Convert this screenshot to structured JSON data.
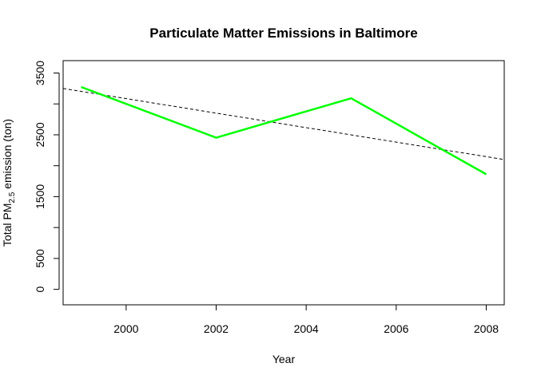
{
  "chart_data": {
    "type": "line",
    "title": "Particulate Matter Emissions in Baltimore",
    "xlabel": "Year",
    "ylabel": {
      "prefix": "Total PM",
      "subscript": "2.5",
      "suffix": " emission (ton)"
    },
    "xlim": [
      1998.6,
      2008.4
    ],
    "ylim": [
      -250,
      3700
    ],
    "x_ticks": [
      2000,
      2002,
      2004,
      2006,
      2008
    ],
    "y_ticks": [
      0,
      500,
      1000,
      1500,
      2000,
      2500,
      3000,
      3500
    ],
    "y_tick_labels": [
      "0",
      "500",
      "",
      "1500",
      "",
      "2500",
      "",
      "3500"
    ],
    "grid": false,
    "series": [
      {
        "x": [
          1999,
          2002,
          2005,
          2008
        ],
        "y": [
          3274,
          2454,
          3091,
          1862
        ],
        "color": "#00ff00",
        "style": "solid"
      }
    ],
    "trend_line": {
      "x": [
        1998.6,
        2008.4
      ],
      "y": [
        3250,
        2100
      ],
      "color": "#000000",
      "style": "dashed"
    }
  }
}
